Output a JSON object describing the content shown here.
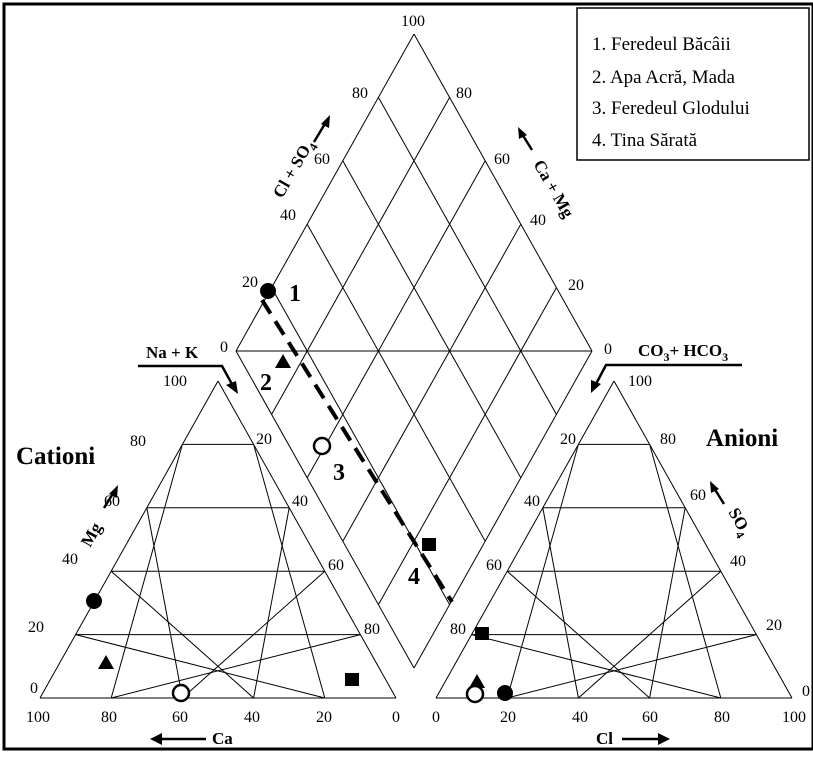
{
  "panels": {
    "cations_title": "Cationi",
    "anions_title": "Anioni"
  },
  "axes": {
    "top_left": "Cl + SO",
    "top_left_sub": "4",
    "top_right": "Ca + Mg",
    "na_k": "Na + K",
    "co3": "CO",
    "co3_sub1": "3",
    "co3_plus": "+ HCO",
    "co3_sub2": "3",
    "mg": "Mg",
    "so4": "SO",
    "so4_sub": "4",
    "ca": "Ca",
    "cl": "Cl"
  },
  "legend": {
    "items": [
      "1. Feredeul Băcâii",
      "2. Apa Acră, Mada",
      "3. Feredeul Glodului",
      "4. Tina Sărată"
    ]
  },
  "points": [
    {
      "label": "1",
      "marker": "filled-circle"
    },
    {
      "label": "2",
      "marker": "filled-triangle"
    },
    {
      "label": "3",
      "marker": "open-circle"
    },
    {
      "label": "4",
      "marker": "filled-square"
    }
  ],
  "ticks": {
    "diamond_left": [
      "100",
      "80",
      "60",
      "40",
      "20",
      "0"
    ],
    "diamond_right": [
      "80",
      "60",
      "40",
      "20",
      "0"
    ],
    "cation_bottom": [
      "100",
      "80",
      "60",
      "40",
      "20",
      "0"
    ],
    "cation_left": [
      "0",
      "20",
      "40",
      "60",
      "80",
      "100"
    ],
    "cation_right": [
      "20",
      "40",
      "60",
      "80"
    ],
    "anion_bottom": [
      "0",
      "20",
      "40",
      "60",
      "80",
      "100"
    ],
    "anion_left": [
      "80",
      "60",
      "40",
      "20"
    ],
    "anion_right": [
      "100",
      "80",
      "60",
      "40",
      "20",
      "0"
    ]
  }
}
